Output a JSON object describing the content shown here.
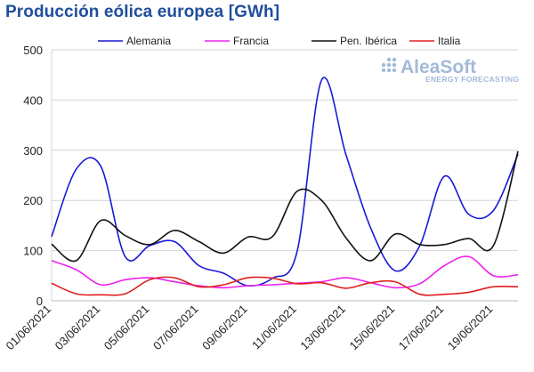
{
  "chart_data": {
    "type": "line",
    "title": "Producción eólica europea [GWh]",
    "xlabel": "",
    "ylabel": "",
    "ylim": [
      0,
      500
    ],
    "yticks": [
      0,
      100,
      200,
      300,
      400,
      500
    ],
    "grid": true,
    "legend_position": "top",
    "categories": [
      "01/06/2021",
      "02/06/2021",
      "03/06/2021",
      "04/06/2021",
      "05/06/2021",
      "06/06/2021",
      "07/06/2021",
      "08/06/2021",
      "09/06/2021",
      "10/06/2021",
      "11/06/2021",
      "12/06/2021",
      "13/06/2021",
      "14/06/2021",
      "15/06/2021",
      "16/06/2021",
      "17/06/2021",
      "18/06/2021",
      "19/06/2021",
      "20/06/2021"
    ],
    "xtick_labels": [
      "01/06/2021",
      "03/06/2021",
      "05/06/2021",
      "07/06/2021",
      "09/06/2021",
      "11/06/2021",
      "13/06/2021",
      "15/06/2021",
      "17/06/2021",
      "19/06/2021"
    ],
    "series": [
      {
        "name": "Alemania",
        "color": "#1a1ad6",
        "values": [
          128,
          262,
          268,
          88,
          110,
          118,
          70,
          55,
          30,
          45,
          98,
          440,
          290,
          145,
          60,
          110,
          248,
          172,
          180,
          292
        ]
      },
      {
        "name": "Francia",
        "color": "#ee22ee",
        "values": [
          80,
          62,
          32,
          42,
          46,
          38,
          30,
          26,
          30,
          32,
          35,
          38,
          46,
          36,
          26,
          34,
          70,
          88,
          50,
          52
        ]
      },
      {
        "name": "Pen. Ibérica",
        "color": "#111111",
        "values": [
          113,
          80,
          160,
          130,
          112,
          140,
          118,
          95,
          127,
          128,
          218,
          200,
          125,
          80,
          133,
          112,
          112,
          124,
          110,
          298
        ]
      },
      {
        "name": "Italia",
        "color": "#e02020",
        "values": [
          35,
          14,
          12,
          14,
          42,
          46,
          28,
          32,
          46,
          45,
          34,
          36,
          25,
          36,
          38,
          13,
          13,
          17,
          28,
          28
        ]
      }
    ]
  },
  "logo": {
    "name": "AleaSoft",
    "tagline": "ENERGY FORECASTING"
  }
}
